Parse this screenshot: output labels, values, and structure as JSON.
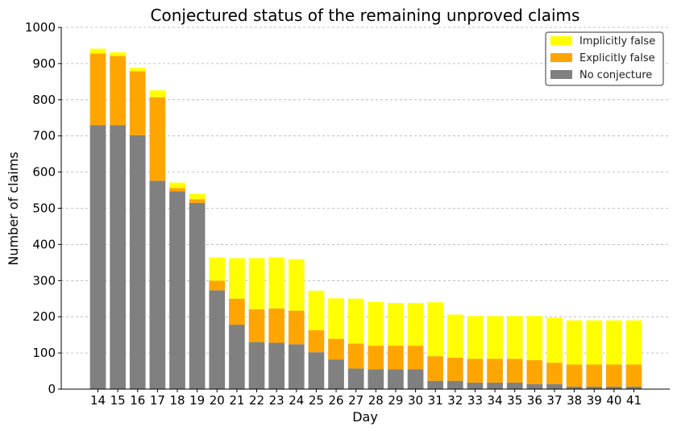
{
  "chart_data": {
    "type": "bar",
    "stacked": true,
    "title": "Conjectured status of the remaining unproved claims",
    "xlabel": "Day",
    "ylabel": "Number of claims",
    "ylim": [
      0,
      1000
    ],
    "yticks": [
      0,
      100,
      200,
      300,
      400,
      500,
      600,
      700,
      800,
      900,
      1000
    ],
    "grid": "y dashed",
    "legend_position": "top-right",
    "categories": [
      "14",
      "15",
      "16",
      "17",
      "18",
      "19",
      "20",
      "21",
      "22",
      "23",
      "24",
      "25",
      "26",
      "27",
      "28",
      "29",
      "30",
      "31",
      "32",
      "33",
      "34",
      "35",
      "36",
      "37",
      "38",
      "39",
      "40",
      "41"
    ],
    "series": [
      {
        "name": "No conjecture",
        "color": "#808080",
        "values": [
          730,
          730,
          702,
          576,
          547,
          515,
          273,
          178,
          130,
          128,
          124,
          102,
          82,
          57,
          55,
          55,
          55,
          23,
          23,
          18,
          18,
          18,
          14,
          14,
          7,
          7,
          7,
          7
        ]
      },
      {
        "name": "Explicitly false",
        "color": "#FFA500",
        "values": [
          198,
          191,
          177,
          231,
          9,
          10,
          27,
          72,
          91,
          95,
          93,
          61,
          57,
          69,
          65,
          65,
          65,
          68,
          64,
          66,
          66,
          66,
          66,
          59,
          61,
          61,
          61,
          61
        ]
      },
      {
        "name": "Implicitly false",
        "color": "#FFFF00",
        "values": [
          13,
          10,
          9,
          19,
          15,
          15,
          64,
          112,
          141,
          141,
          142,
          109,
          112,
          124,
          121,
          118,
          118,
          149,
          119,
          118,
          118,
          118,
          122,
          124,
          122,
          122,
          122,
          122
        ]
      }
    ]
  }
}
